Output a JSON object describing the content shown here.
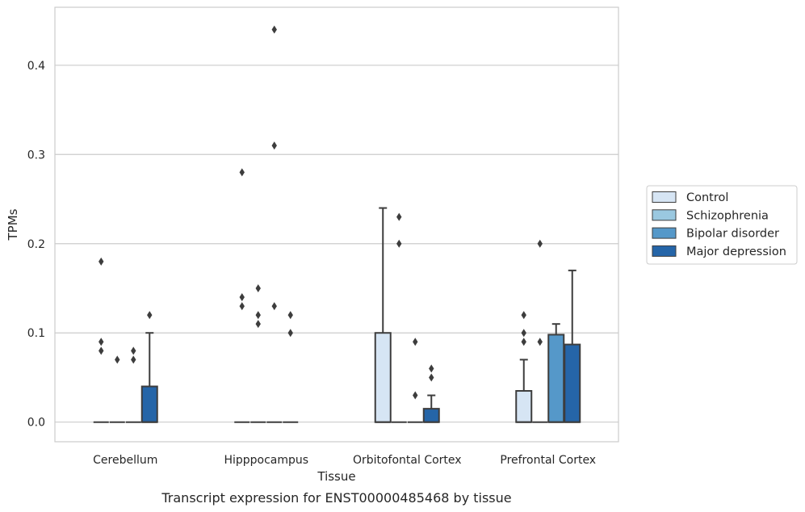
{
  "caption": "Transcript expression for ENST00000485468 by tissue",
  "colors": {
    "Control": "#d6e5f4",
    "Schizophrenia": "#9ac8e0",
    "Bipolar disorder": "#5598c9",
    "Major depression": "#2565a8",
    "edge": "#3d3d3d",
    "grid": "#cccccc",
    "frame": "#cccccc"
  },
  "chart_data": {
    "type": "box",
    "xlabel": "Tissue",
    "ylabel": "TPMs",
    "ylim": [
      -0.022,
      0.465
    ],
    "yticks": [
      0.0,
      0.1,
      0.2,
      0.3,
      0.4
    ],
    "ytick_labels": [
      "0.0",
      "0.1",
      "0.2",
      "0.3",
      "0.4"
    ],
    "grid": "horizontal",
    "legend_position": "right",
    "categories": [
      "Cerebellum",
      "Hipppocampus",
      "Orbitofontal Cortex",
      "Prefrontal Cortex"
    ],
    "series": [
      {
        "name": "Control",
        "boxes": [
          {
            "q1": 0,
            "median": 0,
            "q3": 0,
            "whislo": 0,
            "whishi": 0,
            "fliers": [
              0.18,
              0.09,
              0.08
            ]
          },
          {
            "q1": 0,
            "median": 0,
            "q3": 0,
            "whislo": 0,
            "whishi": 0,
            "fliers": [
              0.28,
              0.14,
              0.13
            ]
          },
          {
            "q1": 0,
            "median": 0,
            "q3": 0.1,
            "whislo": 0,
            "whishi": 0.24,
            "fliers": []
          },
          {
            "q1": 0,
            "median": 0,
            "q3": 0.035,
            "whislo": 0,
            "whishi": 0.07,
            "fliers": [
              0.12,
              0.1,
              0.09
            ]
          }
        ]
      },
      {
        "name": "Schizophrenia",
        "boxes": [
          {
            "q1": 0,
            "median": 0,
            "q3": 0,
            "whislo": 0,
            "whishi": 0,
            "fliers": [
              0.07
            ]
          },
          {
            "q1": 0,
            "median": 0,
            "q3": 0,
            "whislo": 0,
            "whishi": 0,
            "fliers": [
              0.15,
              0.12,
              0.11
            ]
          },
          {
            "q1": 0,
            "median": 0,
            "q3": 0,
            "whislo": 0,
            "whishi": 0,
            "fliers": [
              0.23,
              0.2
            ]
          },
          {
            "q1": 0,
            "median": 0,
            "q3": 0,
            "whislo": 0,
            "whishi": 0,
            "fliers": [
              0.2,
              0.09
            ]
          }
        ]
      },
      {
        "name": "Bipolar disorder",
        "boxes": [
          {
            "q1": 0,
            "median": 0,
            "q3": 0,
            "whislo": 0,
            "whishi": 0,
            "fliers": [
              0.08,
              0.07
            ]
          },
          {
            "q1": 0,
            "median": 0,
            "q3": 0,
            "whislo": 0,
            "whishi": 0,
            "fliers": [
              0.44,
              0.31,
              0.13
            ]
          },
          {
            "q1": 0,
            "median": 0,
            "q3": 0,
            "whislo": 0,
            "whishi": 0,
            "fliers": [
              0.09,
              0.03
            ]
          },
          {
            "q1": 0,
            "median": 0,
            "q3": 0.098,
            "whislo": 0,
            "whishi": 0.11,
            "fliers": []
          }
        ]
      },
      {
        "name": "Major depression",
        "boxes": [
          {
            "q1": 0,
            "median": 0,
            "q3": 0.04,
            "whislo": 0,
            "whishi": 0.1,
            "fliers": [
              0.12
            ]
          },
          {
            "q1": 0,
            "median": 0,
            "q3": 0,
            "whislo": 0,
            "whishi": 0,
            "fliers": [
              0.12,
              0.1
            ]
          },
          {
            "q1": 0,
            "median": 0,
            "q3": 0.015,
            "whislo": 0,
            "whishi": 0.03,
            "fliers": [
              0.06,
              0.05
            ]
          },
          {
            "q1": 0,
            "median": 0,
            "q3": 0.087,
            "whislo": 0,
            "whishi": 0.17,
            "fliers": []
          }
        ]
      }
    ]
  }
}
